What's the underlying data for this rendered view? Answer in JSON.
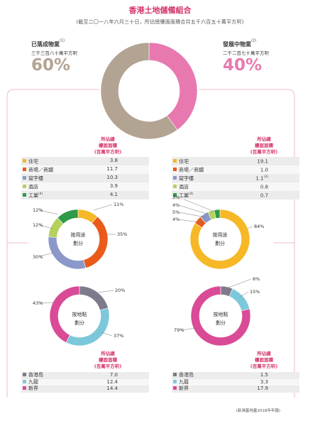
{
  "page": {
    "title": "香港土地儲備組合",
    "subtitle": "(截至二〇一八年六月三十日，所佔總樓面面積合共五千六百五十萬平方呎)",
    "footer": "(新鴻基地產2018年年報)"
  },
  "overview": {
    "completed": {
      "label": "已落成物業",
      "note": "(1)",
      "sub": "三千三百八十萬平方呎",
      "percent": "60%",
      "value": 60,
      "color": "#b3a393"
    },
    "under_development": {
      "label": "發展中物業",
      "note": "(2)",
      "sub": "二千二百七十萬平方呎",
      "percent": "40%",
      "value": 40,
      "color": "#e879b0"
    }
  },
  "table_header": {
    "line1": "所佔總",
    "line2": "樓面面積",
    "line3": "(百萬平方呎)"
  },
  "usage_center": {
    "line1": "按用途",
    "line2": "劃分"
  },
  "location_center": {
    "line1": "按地點",
    "line2": "劃分"
  },
  "left_usage": {
    "rows": [
      {
        "label": "住宅",
        "note": "",
        "value": "3.8",
        "color": "#f6b826"
      },
      {
        "label": "商場／商舖",
        "note": "",
        "value": "11.7",
        "color": "#ea5a1a"
      },
      {
        "label": "寫字樓",
        "note": "",
        "value": "10.3",
        "color": "#8b98c9"
      },
      {
        "label": "酒店",
        "note": "",
        "value": "3.9",
        "color": "#b4d15c"
      },
      {
        "label": "工業",
        "note": "(4)",
        "value": "4.1",
        "color": "#2f9a48"
      }
    ],
    "pct_labels": [
      "11%",
      "35%",
      "30%",
      "12%",
      "12%"
    ]
  },
  "right_usage": {
    "rows": [
      {
        "label": "住宅",
        "note": "",
        "value": "19.1",
        "value_note": "",
        "color": "#f6b826"
      },
      {
        "label": "商場／商舖",
        "note": "",
        "value": "1.0",
        "value_note": "",
        "color": "#ea5a1a"
      },
      {
        "label": "寫字樓",
        "note": "",
        "value": "1.1",
        "value_note": "(3)",
        "color": "#8b98c9"
      },
      {
        "label": "酒店",
        "note": "",
        "value": "0.8",
        "value_note": "",
        "color": "#b4d15c"
      },
      {
        "label": "工業",
        "note": "(4)",
        "value": "0.7",
        "value_note": "",
        "color": "#2f9a48"
      }
    ],
    "pct_labels": [
      "84%",
      "4%",
      "5%",
      "4%",
      "3%"
    ]
  },
  "left_location": {
    "rows": [
      {
        "label": "香港島",
        "value": "7.0",
        "color": "#7d7a8c"
      },
      {
        "label": "九龍",
        "value": "12.4",
        "color": "#7cc8da"
      },
      {
        "label": "新界",
        "value": "14.4",
        "color": "#d94b96"
      }
    ],
    "pct_labels": [
      "20%",
      "37%",
      "43%"
    ]
  },
  "right_location": {
    "rows": [
      {
        "label": "香港島",
        "value": "1.5",
        "color": "#7d7a8c"
      },
      {
        "label": "九龍",
        "value": "3.3",
        "color": "#7cc8da"
      },
      {
        "label": "新界",
        "value": "17.9",
        "color": "#d94b96"
      }
    ],
    "pct_labels": [
      "6%",
      "15%",
      "79%"
    ]
  },
  "colors": {
    "accent": "#d6336c",
    "connector": "#e8a9c3"
  }
}
